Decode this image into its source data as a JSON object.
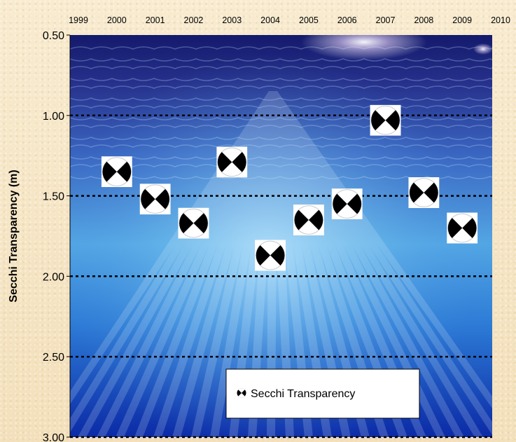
{
  "chart_data": {
    "type": "scatter",
    "title": "",
    "xlabel": "",
    "ylabel": "Secchi Transparency (m)",
    "x_ticks": [
      "1999",
      "2000",
      "2001",
      "2002",
      "2003",
      "2004",
      "2005",
      "2006",
      "2007",
      "2008",
      "2009",
      "2010"
    ],
    "y_ticks": [
      "0.50",
      "1.00",
      "1.50",
      "2.00",
      "2.50",
      "3.00"
    ],
    "xlim": [
      1999,
      2010
    ],
    "ylim": [
      0.5,
      3.0
    ],
    "y_inverted": true,
    "gridlines_y": [
      1.0,
      1.5,
      2.0,
      2.5,
      3.0
    ],
    "series": [
      {
        "name": "Secchi Transparency",
        "marker": "secchi-disk-icon",
        "points": [
          {
            "x": 2000,
            "y": 1.35
          },
          {
            "x": 2001,
            "y": 1.52
          },
          {
            "x": 2002,
            "y": 1.67
          },
          {
            "x": 2003,
            "y": 1.29
          },
          {
            "x": 2004,
            "y": 1.87
          },
          {
            "x": 2005,
            "y": 1.65
          },
          {
            "x": 2006,
            "y": 1.55
          },
          {
            "x": 2007,
            "y": 1.03
          },
          {
            "x": 2008,
            "y": 1.48
          },
          {
            "x": 2009,
            "y": 1.7
          }
        ]
      }
    ],
    "legend": {
      "position": "bottom-right",
      "label": "Secchi Transparency"
    },
    "colors": {
      "background": "#f6e7c6",
      "water_top": "#14146e",
      "water_mid": "#2a72d0",
      "water_light": "#8fd0f4",
      "water_bottom": "#0c2fb0"
    }
  }
}
